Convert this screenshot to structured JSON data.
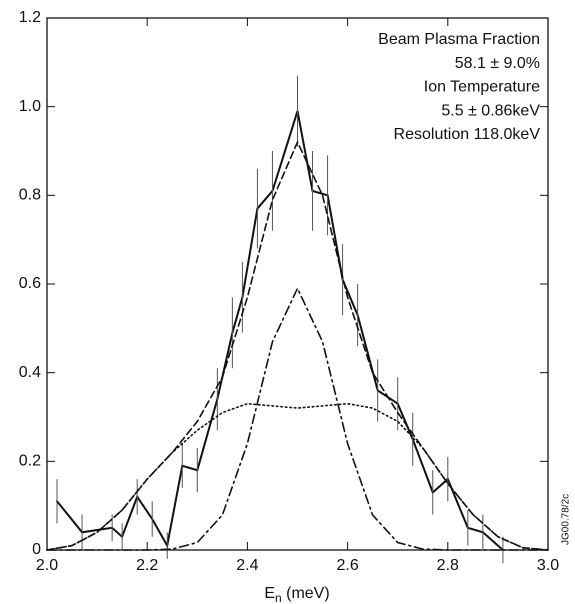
{
  "chart_data": {
    "type": "line",
    "xlabel": [
      "E",
      "n",
      " (meV)"
    ],
    "side_label": "JG00.78/2c",
    "annotations": [
      "Beam Plasma Fraction",
      "58.1 ± 9.0%",
      "Ion Temperature",
      "5.5 ± 0.86keV",
      "Resolution 118.0keV"
    ],
    "xlim": [
      2.0,
      3.0
    ],
    "ylim": [
      0,
      1.2
    ],
    "xticks": [
      {
        "value": 2.0,
        "label": "2.0"
      },
      {
        "value": 2.2,
        "label": "2.2"
      },
      {
        "value": 2.4,
        "label": "2.4"
      },
      {
        "value": 2.6,
        "label": "2.6"
      },
      {
        "value": 2.8,
        "label": "2.8"
      },
      {
        "value": 3.0,
        "label": "3.0"
      }
    ],
    "yticks": [
      0,
      0.2,
      0.4,
      0.6,
      0.8,
      {
        "value": 1.0,
        "label": "1.0"
      },
      1.2
    ],
    "series": [
      {
        "style": "solid",
        "color": "#111111",
        "x": [
          2.02,
          2.07,
          2.13,
          2.15,
          2.18,
          2.21,
          2.24,
          2.27,
          2.3,
          2.34,
          2.37,
          2.39,
          2.42,
          2.45,
          2.5,
          2.53,
          2.56,
          2.59,
          2.62,
          2.66,
          2.7,
          2.73,
          2.77,
          2.8,
          2.84,
          2.87,
          2.91
        ],
        "values": [
          0.11,
          0.04,
          0.05,
          0.03,
          0.12,
          0.07,
          0.01,
          0.19,
          0.18,
          0.34,
          0.49,
          0.57,
          0.77,
          0.81,
          0.99,
          0.81,
          0.8,
          0.61,
          0.53,
          0.36,
          0.33,
          0.25,
          0.13,
          0.16,
          0.05,
          0.04,
          0.0
        ],
        "errors": [
          0.05,
          0.04,
          0.03,
          0.03,
          0.04,
          0.04,
          0.03,
          0.05,
          0.05,
          0.07,
          0.08,
          0.08,
          0.09,
          0.09,
          0.08,
          0.09,
          0.09,
          0.08,
          0.07,
          0.07,
          0.06,
          0.06,
          0.05,
          0.05,
          0.04,
          0.04,
          0.03
        ]
      },
      {
        "style": "dashed",
        "color": "#111111",
        "x": [
          2.0,
          2.05,
          2.1,
          2.15,
          2.2,
          2.25,
          2.3,
          2.35,
          2.4,
          2.45,
          2.5,
          2.55,
          2.6,
          2.65,
          2.7,
          2.75,
          2.8,
          2.85,
          2.9,
          2.95,
          3.0
        ],
        "values": [
          0,
          0.01,
          0.04,
          0.09,
          0.16,
          0.22,
          0.29,
          0.39,
          0.57,
          0.79,
          0.92,
          0.8,
          0.57,
          0.4,
          0.31,
          0.23,
          0.15,
          0.08,
          0.03,
          0.005,
          0
        ]
      },
      {
        "style": "dotted",
        "color": "#111111",
        "x": [
          2.0,
          2.05,
          2.1,
          2.15,
          2.2,
          2.25,
          2.3,
          2.35,
          2.4,
          2.45,
          2.5,
          2.55,
          2.6,
          2.65,
          2.7,
          2.75,
          2.8,
          2.85,
          2.9,
          2.95,
          3.0
        ],
        "values": [
          0,
          0.01,
          0.04,
          0.09,
          0.16,
          0.22,
          0.27,
          0.31,
          0.33,
          0.325,
          0.32,
          0.325,
          0.33,
          0.32,
          0.29,
          0.23,
          0.15,
          0.08,
          0.03,
          0.005,
          0
        ]
      },
      {
        "style": "dashdot",
        "color": "#111111",
        "x": [
          2.0,
          2.05,
          2.1,
          2.15,
          2.2,
          2.25,
          2.3,
          2.35,
          2.4,
          2.45,
          2.5,
          2.55,
          2.6,
          2.65,
          2.7,
          2.75,
          2.8,
          2.85,
          2.9,
          2.95,
          3.0
        ],
        "values": [
          0,
          0,
          0,
          0,
          0,
          0.002,
          0.017,
          0.079,
          0.24,
          0.47,
          0.59,
          0.47,
          0.24,
          0.079,
          0.017,
          0.002,
          0,
          0,
          0,
          0,
          0
        ]
      }
    ]
  }
}
